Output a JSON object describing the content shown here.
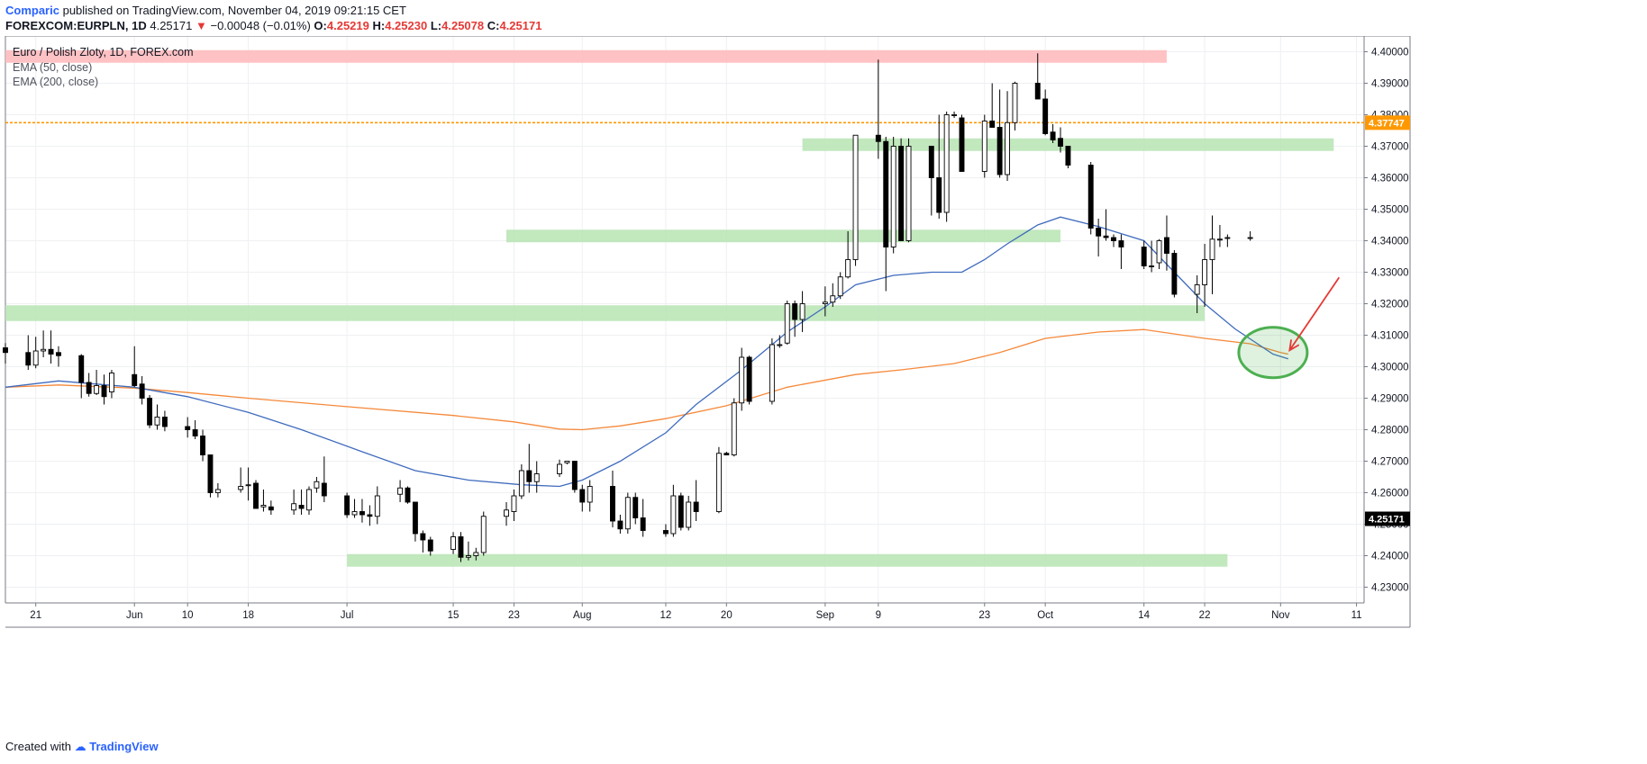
{
  "header": {
    "publisher": "Comparic",
    "published_text": "published on TradingView.com, November 04, 2019 09:21:15 CET",
    "symbol": "FOREXCOM:EURPLN, 1D",
    "last": "4.25171",
    "change": "−0.00048 (−0.01%)",
    "o_label": "O:",
    "o": "4.25219",
    "h_label": "H:",
    "h": "4.25230",
    "l_label": "L:",
    "l": "4.25078",
    "c_label": "C:",
    "c": "4.25171"
  },
  "legend": {
    "title": "Euro / Polish Zloty, 1D, FOREX.com",
    "ema50": "EMA (50, close)",
    "ema200": "EMA (200, close)"
  },
  "footer": {
    "created_with": "Created with",
    "brand": "TradingView"
  },
  "colors": {
    "up_body": "#ffffff",
    "down_body": "#000000",
    "wick": "#000000",
    "ema50": "#3f6bbd",
    "ema200": "#f5893a",
    "support_zone": "#b7e4b3",
    "resistance_zone": "#ffb7ba",
    "hline": "#ff9800",
    "circle": "#4caf50",
    "arrow": "#e53935"
  },
  "chart_data": {
    "type": "candlestick",
    "title": "Euro / Polish Zloty, 1D, FOREX.com",
    "ylim": [
      4.225,
      4.405
    ],
    "y_ticks": [
      "4.40000",
      "4.39000",
      "4.38000",
      "4.37000",
      "4.36000",
      "4.35000",
      "4.34000",
      "4.33000",
      "4.32000",
      "4.31000",
      "4.30000",
      "4.29000",
      "4.28000",
      "4.27000",
      "4.26000",
      "4.25000",
      "4.24000",
      "4.23000"
    ],
    "y_tick_values": [
      4.4,
      4.39,
      4.38,
      4.37,
      4.36,
      4.35,
      4.34,
      4.33,
      4.32,
      4.31,
      4.3,
      4.29,
      4.28,
      4.27,
      4.26,
      4.25,
      4.24,
      4.23
    ],
    "x_tick_labels": [
      "21",
      "Jun",
      "10",
      "18",
      "Jul",
      "15",
      "23",
      "Aug",
      "12",
      "20",
      "Sep",
      "9",
      "23",
      "Oct",
      "14",
      "22",
      "Nov",
      "11"
    ],
    "x_tick_dates": [
      "2019-05-21",
      "2019-06-03",
      "2019-06-10",
      "2019-06-18",
      "2019-07-01",
      "2019-07-15",
      "2019-07-23",
      "2019-08-01",
      "2019-08-12",
      "2019-08-20",
      "2019-09-02",
      "2019-09-09",
      "2019-09-23",
      "2019-10-01",
      "2019-10-14",
      "2019-10-22",
      "2019-11-01",
      "2019-11-11"
    ],
    "x_range": [
      "2019-05-17",
      "2019-11-12"
    ],
    "horizontal_line": {
      "value": 4.37747,
      "label": "4.37747"
    },
    "last_price": {
      "value": 4.25171,
      "label": "4.25171"
    },
    "zones": [
      {
        "kind": "resistance",
        "from": "2019-05-17",
        "to": "2019-10-17",
        "low": 4.3965,
        "high": 4.4005
      },
      {
        "kind": "support",
        "from": "2019-08-30",
        "to": "2019-11-08",
        "low": 4.3685,
        "high": 4.3725
      },
      {
        "kind": "support",
        "from": "2019-07-22",
        "to": "2019-10-03",
        "low": 4.3395,
        "high": 4.3435
      },
      {
        "kind": "support",
        "from": "2019-05-17",
        "to": "2019-10-22",
        "low": 4.3145,
        "high": 4.3195
      },
      {
        "kind": "support",
        "from": "2019-07-01",
        "to": "2019-10-25",
        "low": 4.2365,
        "high": 4.2405
      }
    ],
    "annotation_circle": {
      "date": "2019-10-31",
      "value": 4.3045
    },
    "annotation_arrow": {
      "from": {
        "date": "2019-11-08",
        "value": 4.3135
      },
      "to": {
        "date": "2019-11-01",
        "value": 4.3075
      }
    },
    "ema50": [
      [
        "2019-05-17",
        4.2935
      ],
      [
        "2019-05-24",
        4.2955
      ],
      [
        "2019-06-03",
        4.2935
      ],
      [
        "2019-06-10",
        4.2905
      ],
      [
        "2019-06-18",
        4.2855
      ],
      [
        "2019-06-25",
        4.28
      ],
      [
        "2019-07-03",
        4.273
      ],
      [
        "2019-07-10",
        4.267
      ],
      [
        "2019-07-17",
        4.264
      ],
      [
        "2019-07-24",
        4.2625
      ],
      [
        "2019-07-29",
        4.262
      ],
      [
        "2019-08-01",
        4.264
      ],
      [
        "2019-08-06",
        4.27
      ],
      [
        "2019-08-12",
        4.279
      ],
      [
        "2019-08-16",
        4.288
      ],
      [
        "2019-08-22",
        4.299
      ],
      [
        "2019-08-28",
        4.311
      ],
      [
        "2019-09-02",
        4.319
      ],
      [
        "2019-09-06",
        4.326
      ],
      [
        "2019-09-11",
        4.329
      ],
      [
        "2019-09-16",
        4.33
      ],
      [
        "2019-09-20",
        4.33
      ],
      [
        "2019-09-23",
        4.334
      ],
      [
        "2019-09-26",
        4.339
      ],
      [
        "2019-09-30",
        4.345
      ],
      [
        "2019-10-03",
        4.3475
      ],
      [
        "2019-10-08",
        4.3445
      ],
      [
        "2019-10-14",
        4.34
      ],
      [
        "2019-10-18",
        4.33
      ],
      [
        "2019-10-22",
        4.32
      ],
      [
        "2019-10-26",
        4.312
      ],
      [
        "2019-10-31",
        4.304
      ],
      [
        "2019-11-02",
        4.3025
      ]
    ],
    "ema200": [
      [
        "2019-05-17",
        4.2935
      ],
      [
        "2019-05-24",
        4.2942
      ],
      [
        "2019-06-03",
        4.2932
      ],
      [
        "2019-06-10",
        4.2918
      ],
      [
        "2019-06-18",
        4.29
      ],
      [
        "2019-07-01",
        4.2873
      ],
      [
        "2019-07-15",
        4.2845
      ],
      [
        "2019-07-23",
        4.2825
      ],
      [
        "2019-07-29",
        4.2802
      ],
      [
        "2019-08-01",
        4.28
      ],
      [
        "2019-08-06",
        4.2812
      ],
      [
        "2019-08-12",
        4.2835
      ],
      [
        "2019-08-20",
        4.2876
      ],
      [
        "2019-08-28",
        4.2935
      ],
      [
        "2019-09-06",
        4.2975
      ],
      [
        "2019-09-12",
        4.299
      ],
      [
        "2019-09-19",
        4.301
      ],
      [
        "2019-09-25",
        4.3045
      ],
      [
        "2019-10-01",
        4.309
      ],
      [
        "2019-10-08",
        4.311
      ],
      [
        "2019-10-14",
        4.3118
      ],
      [
        "2019-10-22",
        4.309
      ],
      [
        "2019-10-28",
        4.3073
      ],
      [
        "2019-11-01",
        4.3045
      ],
      [
        "2019-11-02",
        4.304
      ]
    ],
    "candles": [
      [
        "2019-05-17",
        4.306,
        4.3075,
        4.301,
        4.3045
      ],
      [
        "2019-05-20",
        4.3045,
        4.31,
        4.299,
        4.3005
      ],
      [
        "2019-05-21",
        4.3005,
        4.3095,
        4.2995,
        4.305
      ],
      [
        "2019-05-22",
        4.305,
        4.3115,
        4.303,
        4.3055
      ],
      [
        "2019-05-23",
        4.3055,
        4.3115,
        4.301,
        4.304
      ],
      [
        "2019-05-24",
        4.3045,
        4.3065,
        4.3,
        4.3035
      ],
      [
        "2019-05-27",
        4.3035,
        4.304,
        4.29,
        4.295
      ],
      [
        "2019-05-28",
        4.295,
        4.298,
        4.2905,
        4.2915
      ],
      [
        "2019-05-29",
        4.2915,
        4.299,
        4.291,
        4.294
      ],
      [
        "2019-05-30",
        4.294,
        4.2975,
        4.288,
        4.2905
      ],
      [
        "2019-05-31",
        4.292,
        4.299,
        4.29,
        4.298
      ],
      [
        "2019-06-03",
        4.2975,
        4.3065,
        4.2935,
        4.294
      ],
      [
        "2019-06-04",
        4.2945,
        4.297,
        4.288,
        4.29
      ],
      [
        "2019-06-05",
        4.29,
        4.291,
        4.2805,
        4.2815
      ],
      [
        "2019-06-06",
        4.2815,
        4.288,
        4.28,
        4.284
      ],
      [
        "2019-06-07",
        4.284,
        4.286,
        4.2795,
        4.281
      ],
      [
        "2019-06-10",
        4.281,
        4.284,
        4.2775,
        4.28
      ],
      [
        "2019-06-11",
        4.28,
        4.283,
        4.277,
        4.278
      ],
      [
        "2019-06-12",
        4.278,
        4.28,
        4.27,
        4.272
      ],
      [
        "2019-06-13",
        4.272,
        4.272,
        4.2585,
        4.26
      ],
      [
        "2019-06-14",
        4.26,
        4.263,
        4.2585,
        4.261
      ],
      [
        "2019-06-17",
        4.261,
        4.268,
        4.26,
        4.262
      ],
      [
        "2019-06-18",
        4.2625,
        4.268,
        4.2575,
        4.2625
      ],
      [
        "2019-06-19",
        4.263,
        4.264,
        4.256,
        4.255
      ],
      [
        "2019-06-20",
        4.2555,
        4.261,
        4.254,
        4.256
      ],
      [
        "2019-06-21",
        4.2555,
        4.2575,
        4.253,
        4.2545
      ],
      [
        "2019-06-24",
        4.2545,
        4.261,
        4.253,
        4.2565
      ],
      [
        "2019-06-25",
        4.256,
        4.261,
        4.253,
        4.255
      ],
      [
        "2019-06-26",
        4.2545,
        4.262,
        4.253,
        4.261
      ],
      [
        "2019-06-27",
        4.2615,
        4.265,
        4.26,
        4.2635
      ],
      [
        "2019-06-28",
        4.263,
        4.2715,
        4.257,
        4.259
      ],
      [
        "2019-07-01",
        4.259,
        4.26,
        4.252,
        4.253
      ],
      [
        "2019-07-02",
        4.253,
        4.258,
        4.252,
        4.254
      ],
      [
        "2019-07-03",
        4.254,
        4.258,
        4.2505,
        4.253
      ],
      [
        "2019-07-04",
        4.253,
        4.256,
        4.2495,
        4.2525
      ],
      [
        "2019-07-05",
        4.2525,
        4.262,
        4.25,
        4.259
      ],
      [
        "2019-07-08",
        4.2595,
        4.264,
        4.257,
        4.2615
      ],
      [
        "2019-07-09",
        4.2615,
        4.262,
        4.2565,
        4.257
      ],
      [
        "2019-07-10",
        4.257,
        4.257,
        4.2445,
        4.247
      ],
      [
        "2019-07-11",
        4.247,
        4.248,
        4.241,
        4.245
      ],
      [
        "2019-07-12",
        4.245,
        4.246,
        4.24,
        4.2415
      ],
      [
        "2019-07-15",
        4.242,
        4.2475,
        4.2405,
        4.246
      ],
      [
        "2019-07-16",
        4.246,
        4.2475,
        4.238,
        4.2395
      ],
      [
        "2019-07-17",
        4.2395,
        4.2445,
        4.2385,
        4.24
      ],
      [
        "2019-07-18",
        4.24,
        4.2425,
        4.2385,
        4.241
      ],
      [
        "2019-07-19",
        4.241,
        4.254,
        4.24,
        4.2525
      ],
      [
        "2019-07-22",
        4.2525,
        4.257,
        4.2495,
        4.2545
      ],
      [
        "2019-07-23",
        4.254,
        4.261,
        4.251,
        4.259
      ],
      [
        "2019-07-24",
        4.259,
        4.269,
        4.258,
        4.267
      ],
      [
        "2019-07-25",
        4.267,
        4.2755,
        4.26,
        4.2635
      ],
      [
        "2019-07-26",
        4.2635,
        4.27,
        4.26,
        4.266
      ],
      [
        "2019-07-29",
        4.266,
        4.2705,
        4.265,
        4.269
      ],
      [
        "2019-07-30",
        4.2695,
        4.27,
        4.269,
        4.27
      ],
      [
        "2019-07-31",
        4.27,
        4.27,
        4.26,
        4.261
      ],
      [
        "2019-08-01",
        4.261,
        4.2625,
        4.254,
        4.257
      ],
      [
        "2019-08-02",
        4.257,
        4.264,
        4.254,
        4.262
      ],
      [
        "2019-08-05",
        4.262,
        4.267,
        4.249,
        4.251
      ],
      [
        "2019-08-06",
        4.251,
        4.253,
        4.247,
        4.2485
      ],
      [
        "2019-08-07",
        4.2485,
        4.26,
        4.247,
        4.2585
      ],
      [
        "2019-08-08",
        4.2585,
        4.26,
        4.25,
        4.252
      ],
      [
        "2019-08-09",
        4.252,
        4.258,
        4.246,
        4.248
      ],
      [
        "2019-08-12",
        4.248,
        4.25,
        4.246,
        4.247
      ],
      [
        "2019-08-13",
        4.247,
        4.2625,
        4.246,
        4.259
      ],
      [
        "2019-08-14",
        4.259,
        4.26,
        4.248,
        4.249
      ],
      [
        "2019-08-15",
        4.249,
        4.259,
        4.248,
        4.257
      ],
      [
        "2019-08-16",
        4.257,
        4.264,
        4.251,
        4.254
      ],
      [
        "2019-08-19",
        4.254,
        4.2745,
        4.2535,
        4.2725
      ],
      [
        "2019-08-20",
        4.2725,
        4.273,
        4.272,
        4.272
      ],
      [
        "2019-08-21",
        4.272,
        4.29,
        4.2715,
        4.2885
      ],
      [
        "2019-08-22",
        4.2885,
        4.306,
        4.286,
        4.303
      ],
      [
        "2019-08-23",
        4.303,
        4.3035,
        4.288,
        4.289
      ],
      [
        "2019-08-26",
        4.289,
        4.309,
        4.288,
        4.307
      ],
      [
        "2019-08-27",
        4.307,
        4.31,
        4.306,
        4.307
      ],
      [
        "2019-08-28",
        4.3075,
        4.321,
        4.307,
        4.32
      ],
      [
        "2019-08-29",
        4.32,
        4.321,
        4.3095,
        4.315
      ],
      [
        "2019-08-30",
        4.315,
        4.324,
        4.311,
        4.32
      ],
      [
        "2019-09-02",
        4.32,
        4.3255,
        4.316,
        4.3205
      ],
      [
        "2019-09-03",
        4.3205,
        4.3265,
        4.319,
        4.3225
      ],
      [
        "2019-09-04",
        4.3225,
        4.33,
        4.3215,
        4.3285
      ],
      [
        "2019-09-05",
        4.3285,
        4.343,
        4.328,
        4.334
      ],
      [
        "2019-09-06",
        4.334,
        4.373,
        4.332,
        4.3735
      ],
      [
        "2019-09-09",
        4.3735,
        4.3975,
        4.366,
        4.3715
      ],
      [
        "2019-09-10",
        4.3715,
        4.373,
        4.324,
        4.338
      ],
      [
        "2019-09-11",
        4.338,
        4.373,
        4.336,
        4.37
      ],
      [
        "2019-09-12",
        4.37,
        4.3725,
        4.34,
        4.34
      ],
      [
        "2019-09-13",
        4.34,
        4.3725,
        4.3395,
        4.37
      ],
      [
        "2019-09-16",
        4.37,
        4.37,
        4.348,
        4.36
      ],
      [
        "2019-09-17",
        4.36,
        4.38,
        4.347,
        4.349
      ],
      [
        "2019-09-18",
        4.349,
        4.381,
        4.346,
        4.38
      ],
      [
        "2019-09-19",
        4.38,
        4.381,
        4.379,
        4.38
      ],
      [
        "2019-09-20",
        4.379,
        4.38,
        4.362,
        4.362
      ],
      [
        "2019-09-23",
        4.362,
        4.38,
        4.36,
        4.378
      ],
      [
        "2019-09-24",
        4.378,
        4.39,
        4.376,
        4.376
      ],
      [
        "2019-09-25",
        4.376,
        4.388,
        4.36,
        4.361
      ],
      [
        "2019-09-26",
        4.361,
        4.3875,
        4.359,
        4.3775
      ],
      [
        "2019-09-27",
        4.3775,
        4.3905,
        4.375,
        4.39
      ],
      [
        "2019-09-30",
        4.39,
        4.3995,
        4.385,
        4.385
      ],
      [
        "2019-10-01",
        4.385,
        4.388,
        4.3735,
        4.374
      ],
      [
        "2019-10-02",
        4.3745,
        4.377,
        4.371,
        4.372
      ],
      [
        "2019-10-03",
        4.3725,
        4.376,
        4.368,
        4.37
      ],
      [
        "2019-10-04",
        4.37,
        4.37,
        4.363,
        4.364
      ],
      [
        "2019-10-07",
        4.364,
        4.365,
        4.342,
        4.344
      ],
      [
        "2019-10-08",
        4.344,
        4.347,
        4.335,
        4.3415
      ],
      [
        "2019-10-09",
        4.3415,
        4.35,
        4.34,
        4.341
      ],
      [
        "2019-10-10",
        4.341,
        4.342,
        4.338,
        4.34
      ],
      [
        "2019-10-11",
        4.34,
        4.342,
        4.331,
        4.338
      ],
      [
        "2019-10-14",
        4.338,
        4.34,
        4.331,
        4.332
      ],
      [
        "2019-10-15",
        4.332,
        4.34,
        4.33,
        4.332
      ],
      [
        "2019-10-16",
        4.333,
        4.3405,
        4.331,
        4.34
      ],
      [
        "2019-10-17",
        4.341,
        4.348,
        4.3305,
        4.336
      ],
      [
        "2019-10-18",
        4.336,
        4.337,
        4.322,
        4.323
      ],
      [
        "2019-10-21",
        4.323,
        4.329,
        4.317,
        4.326
      ],
      [
        "2019-10-22",
        4.326,
        4.339,
        4.319,
        4.334
      ],
      [
        "2019-10-23",
        4.334,
        4.348,
        4.323,
        4.3405
      ],
      [
        "2019-10-24",
        4.3405,
        4.345,
        4.338,
        4.3405
      ],
      [
        "2019-10-25",
        4.341,
        4.342,
        4.338,
        4.341
      ],
      [
        "2019-10-28",
        4.341,
        4.343,
        4.34,
        4.341
      ]
    ]
  }
}
